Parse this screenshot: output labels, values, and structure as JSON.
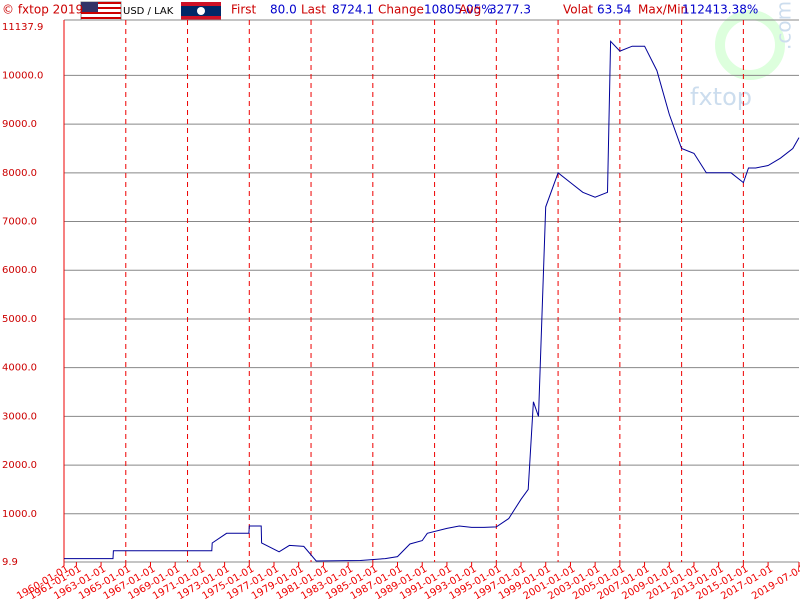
{
  "header": {
    "copyright": "© fxtop 2019",
    "pair": "USD / LAK",
    "stats": [
      {
        "label": "First",
        "value": "80.0"
      },
      {
        "label": "Last",
        "value": "8724.1"
      },
      {
        "label": "Change",
        "value": "10805.05%"
      },
      {
        "label": "Avg",
        "value": "3277.3"
      },
      {
        "label": "Volat",
        "value": "63.54"
      },
      {
        "label": "Max/Min",
        "value": "112413.38%"
      }
    ]
  },
  "watermark": {
    "name": "fxtop",
    "domain": ".com"
  },
  "chart_data": {
    "type": "line",
    "xlim": [
      "1960-01-01",
      "2019-07-04"
    ],
    "xticks": [
      "1960-01-01",
      "1961-01-01",
      "1963-01-01",
      "1965-01-01",
      "1967-01-01",
      "1969-01-01",
      "1971-01-01",
      "1973-01-01",
      "1975-01-01",
      "1977-01-01",
      "1979-01-01",
      "1981-01-01",
      "1983-01-01",
      "1985-01-01",
      "1987-01-01",
      "1989-01-01",
      "1991-01-01",
      "1993-01-01",
      "1995-01-01",
      "1997-01-01",
      "1999-01-01",
      "2001-01-01",
      "2003-01-01",
      "2005-01-01",
      "2007-01-01",
      "2009-01-01",
      "2011-01-01",
      "2013-01-01",
      "2015-01-01",
      "2017-01-01",
      "2019-07-04"
    ],
    "xgrid": [
      "1965-01-01",
      "1970-01-01",
      "1975-01-01",
      "1980-01-01",
      "1985-01-01",
      "1990-01-01",
      "1995-01-01",
      "2000-01-01",
      "2005-01-01",
      "2010-01-01",
      "2015-01-01"
    ],
    "ylim": [
      9.9,
      11137.9
    ],
    "yticks": [
      9.9,
      {
        "value": 1000,
        "label": "1000.0"
      },
      {
        "value": 2000,
        "label": "2000.0"
      },
      {
        "value": 3000,
        "label": "3000.0"
      },
      {
        "value": 4000,
        "label": "4000.0"
      },
      {
        "value": 5000,
        "label": "5000.0"
      },
      {
        "value": 6000,
        "label": "6000.0"
      },
      {
        "value": 7000,
        "label": "7000.0"
      },
      {
        "value": 8000,
        "label": "8000.0"
      },
      {
        "value": 9000,
        "label": "9000.0"
      },
      {
        "value": 10000,
        "label": "10000.0"
      },
      11137.9
    ],
    "grid": true,
    "series": [
      {
        "name": "USD / LAK",
        "color": "#000099",
        "x": [
          "1960-01-01",
          "1963-12-20",
          "1964-01-01",
          "1971-12-20",
          "1972-01-01",
          "1973-03-01",
          "1974-12-20",
          "1975-01-01",
          "1975-12-20",
          "1976-01-01",
          "1977-06-01",
          "1978-04-01",
          "1979-06-01",
          "1980-06-01",
          "1984-01-01",
          "1986-01-01",
          "1987-01-01",
          "1988-01-01",
          "1989-01-01",
          "1989-06-01",
          "1991-01-01",
          "1992-01-01",
          "1993-01-01",
          "1994-01-01",
          "1995-01-01",
          "1996-01-01",
          "1997-01-01",
          "1997-08-01",
          "1998-01-01",
          "1998-06-01",
          "1999-01-01",
          "2000-01-01",
          "2001-01-01",
          "2002-01-01",
          "2003-01-01",
          "2004-01-01",
          "2004-04-01",
          "2005-01-01",
          "2006-01-01",
          "2007-01-01",
          "2008-01-01",
          "2009-01-01",
          "2010-01-01",
          "2011-01-01",
          "2012-01-01",
          "2013-01-01",
          "2014-01-01",
          "2015-01-01",
          "2015-06-01",
          "2016-01-01",
          "2017-01-01",
          "2018-01-01",
          "2019-01-01",
          "2019-07-04"
        ],
        "values": [
          80,
          80,
          240,
          240,
          400,
          600,
          600,
          750,
          750,
          400,
          220,
          350,
          330,
          30,
          40,
          80,
          120,
          380,
          450,
          600,
          700,
          750,
          720,
          720,
          730,
          900,
          1300,
          1500,
          3300,
          3000,
          7300,
          8000,
          7800,
          7600,
          7500,
          7600,
          10700,
          10500,
          10600,
          10600,
          10100,
          9200,
          8500,
          8400,
          8000,
          8000,
          8000,
          7800,
          8100,
          8100,
          8150,
          8300,
          8500,
          8724.1
        ]
      }
    ]
  }
}
